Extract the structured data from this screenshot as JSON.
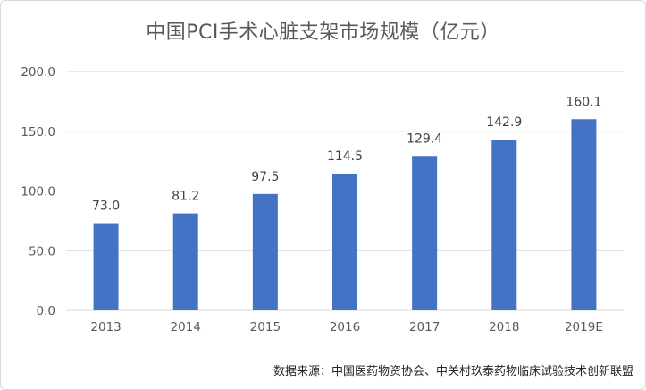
{
  "source": "数据来源：中国医药物资协会、中关村玖泰药物临床试验技术创新联盟",
  "chart_data": {
    "type": "bar",
    "title": "中国PCI手术心脏支架市场规模（亿元）",
    "categories": [
      "2013",
      "2014",
      "2015",
      "2016",
      "2017",
      "2018",
      "2019E"
    ],
    "values": [
      73.0,
      81.2,
      97.5,
      114.5,
      129.4,
      142.9,
      160.1
    ],
    "value_labels": [
      "73.0",
      "81.2",
      "97.5",
      "114.5",
      "129.4",
      "142.9",
      "160.1"
    ],
    "y_ticks": [
      "0.0",
      "50.0",
      "100.0",
      "150.0",
      "200.0"
    ],
    "ylim": [
      0,
      200
    ],
    "grid": true,
    "legend": "none",
    "bar_color": "#4472c4",
    "grid_color": "#d9d9d9"
  }
}
